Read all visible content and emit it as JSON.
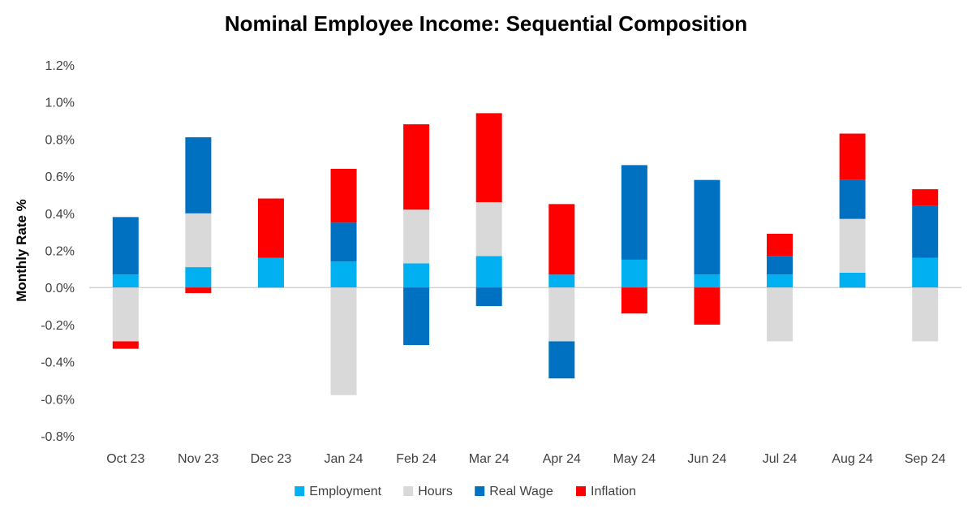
{
  "chart_data": {
    "type": "bar",
    "stacked": true,
    "title": "Nominal Employee Income: Sequential Composition",
    "ylabel": "Monthly Rate %",
    "xlabel": "",
    "ylim": [
      -0.8,
      1.2
    ],
    "ytick_step": 0.2,
    "y_tick_labels": [
      "-0.8%",
      "-0.6%",
      "-0.4%",
      "-0.2%",
      "0.0%",
      "0.2%",
      "0.4%",
      "0.6%",
      "0.8%",
      "1.0%",
      "1.2%"
    ],
    "grid": false,
    "legend_position": "bottom",
    "categories": [
      "Oct 23",
      "Nov 23",
      "Dec 23",
      "Jan 24",
      "Feb 24",
      "Mar 24",
      "Apr 24",
      "May 24",
      "Jun 24",
      "Jul 24",
      "Aug 24",
      "Sep 24"
    ],
    "series": [
      {
        "name": "Employment",
        "color": "#00B0F0",
        "values": [
          0.07,
          0.11,
          0.16,
          0.14,
          0.13,
          0.17,
          0.07,
          0.15,
          0.07,
          0.07,
          0.08,
          0.16
        ]
      },
      {
        "name": "Hours",
        "color": "#D9D9D9",
        "values": [
          -0.29,
          0.29,
          0.0,
          -0.58,
          0.29,
          0.29,
          -0.29,
          0.0,
          0.0,
          -0.29,
          0.29,
          -0.29
        ]
      },
      {
        "name": "Real Wage",
        "color": "#0070C0",
        "values": [
          0.31,
          0.41,
          0.0,
          0.21,
          -0.31,
          -0.1,
          -0.2,
          0.51,
          0.51,
          0.1,
          0.21,
          0.28
        ]
      },
      {
        "name": "Inflation",
        "color": "#FF0000",
        "values": [
          -0.04,
          -0.03,
          0.32,
          0.29,
          0.46,
          0.48,
          0.38,
          -0.14,
          -0.2,
          0.12,
          0.25,
          0.09
        ]
      }
    ]
  }
}
